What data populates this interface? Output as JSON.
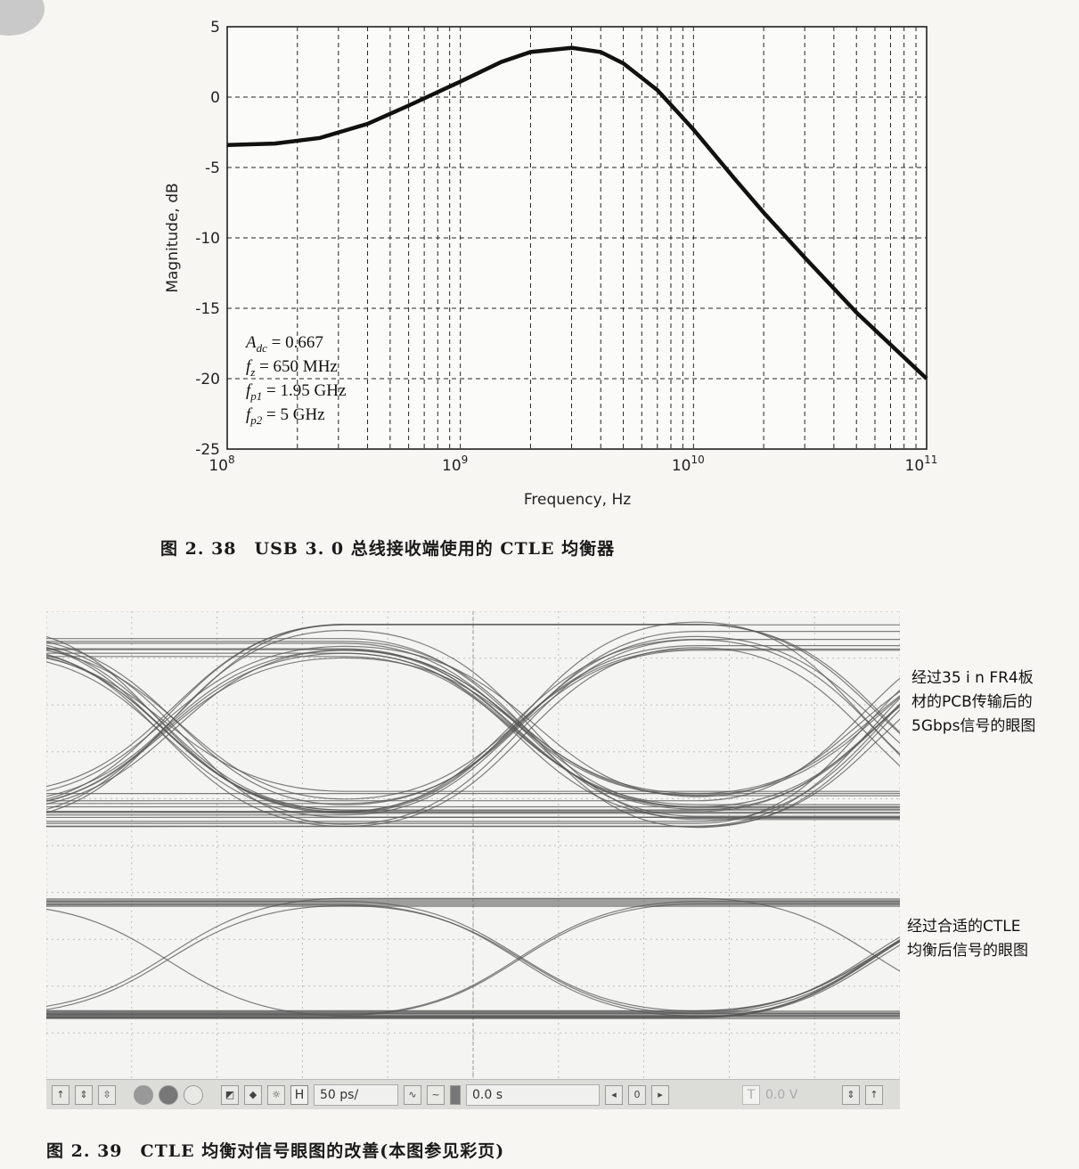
{
  "chart_data": {
    "type": "line",
    "xscale": "log",
    "xlim": [
      100000000,
      100000000000
    ],
    "ylim": [
      -25,
      5
    ],
    "xlabel": "Frequency, Hz",
    "ylabel": "Magnitude, dB",
    "yticks": [
      "5",
      "0",
      "-5",
      "-10",
      "-15",
      "-20",
      "-25"
    ],
    "xticks": [
      {
        "base": "10",
        "exp": "8"
      },
      {
        "base": "10",
        "exp": "9"
      },
      {
        "base": "10",
        "exp": "10"
      },
      {
        "base": "10",
        "exp": "11"
      }
    ],
    "grid": true,
    "parameters": {
      "Adc": 0.667,
      "fz_hz": 650000000,
      "fp1_hz": 1950000000,
      "fp2_hz": 5000000000
    },
    "annotation_lines": [
      {
        "sym": "A",
        "sub": "dc",
        "val": " = 0.667"
      },
      {
        "sym": "f",
        "sub": "z",
        "val": " = 650 MHz"
      },
      {
        "sym": "f",
        "sub": "p1",
        "val": " = 1.95 GHz"
      },
      {
        "sym": "f",
        "sub": "p2",
        "val": " = 5 GHz"
      }
    ],
    "series": [
      {
        "x": [
          100000000.0,
          160000000.0,
          250000000.0,
          400000000.0,
          600000000.0,
          1000000000.0,
          1500000000.0,
          2000000000.0,
          3000000000.0,
          4000000000.0,
          5000000000.0,
          7000000000.0,
          10000000000.0,
          15000000000.0,
          20000000000.0,
          30000000000.0,
          50000000000.0,
          100000000000.0
        ],
        "y": [
          -3.4,
          -3.3,
          -2.9,
          -1.9,
          -0.6,
          1.1,
          2.5,
          3.2,
          3.5,
          3.2,
          2.4,
          0.5,
          -2.3,
          -5.8,
          -8.2,
          -11.4,
          -15.3,
          -20.0
        ]
      }
    ]
  },
  "captions": {
    "fig1": "图 2. 38　USB 3. 0 总线接收端使用的 CTLE 均衡器",
    "fig2": "图 2. 39　CTLE 均衡对信号眼图的改善(本图参见彩页)"
  },
  "notes": {
    "top_eye": "经过35 i n FR4板\n材的PCB传输后的\n5Gbps信号的眼图",
    "bottom_eye": "经过合适的CTLE\n均衡后信号的眼图"
  },
  "toolbar": {
    "h_label": "H",
    "timebase": "50 ps/",
    "delay": "0.0 s",
    "nav_value": "0",
    "t_label": "T",
    "trigger_level": "0.0 V"
  },
  "colors": {
    "curve": "#111111",
    "eye_trace": "#555555",
    "grid": "#222222"
  }
}
